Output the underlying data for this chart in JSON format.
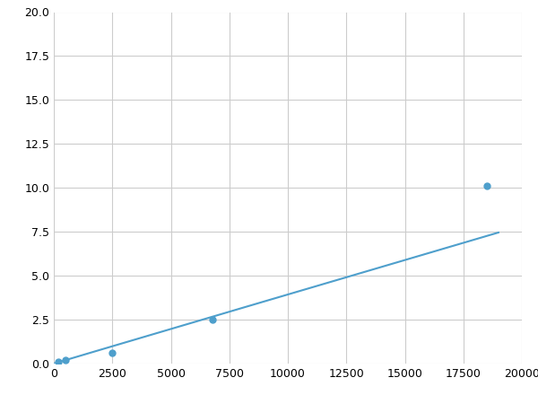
{
  "x": [
    200,
    500,
    2500,
    6800,
    18500
  ],
  "y": [
    0.1,
    0.2,
    0.6,
    2.5,
    10.1
  ],
  "line_color": "#4e9fcc",
  "marker_color": "#4e9fcc",
  "marker_size": 5,
  "line_width": 1.5,
  "xlim": [
    0,
    20000
  ],
  "ylim": [
    0,
    20.0
  ],
  "xticks": [
    0,
    2500,
    5000,
    7500,
    10000,
    12500,
    15000,
    17500,
    20000
  ],
  "yticks": [
    0.0,
    2.5,
    5.0,
    7.5,
    10.0,
    12.5,
    15.0,
    17.5,
    20.0
  ],
  "grid_color": "#cccccc",
  "background_color": "#ffffff",
  "figsize": [
    6.0,
    4.5
  ],
  "dpi": 100
}
